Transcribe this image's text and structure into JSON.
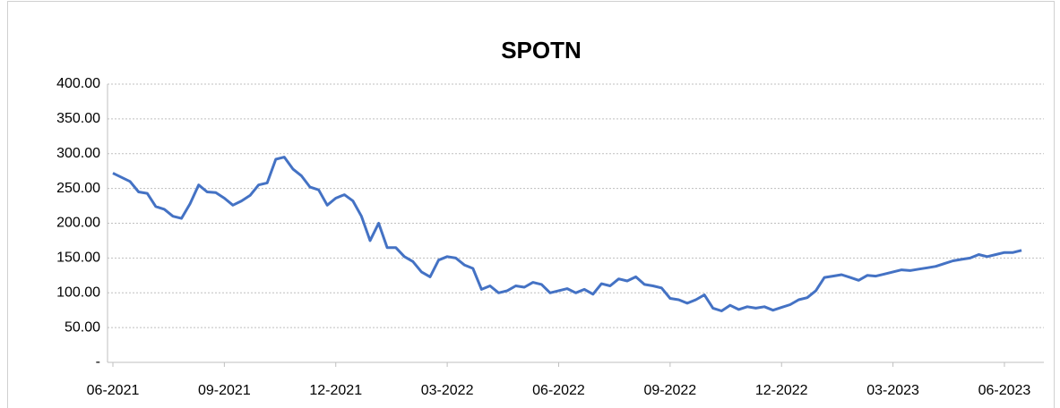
{
  "chart_data": {
    "type": "line",
    "title": "SPOTN",
    "categories": [
      "06-2021",
      null,
      null,
      null,
      null,
      null,
      null,
      null,
      null,
      null,
      null,
      null,
      null,
      "09-2021",
      null,
      null,
      null,
      null,
      null,
      null,
      null,
      null,
      null,
      null,
      null,
      null,
      "12-2021",
      null,
      null,
      null,
      null,
      null,
      null,
      null,
      null,
      null,
      null,
      null,
      null,
      "03-2022",
      null,
      null,
      null,
      null,
      null,
      null,
      null,
      null,
      null,
      null,
      null,
      null,
      "06-2022",
      null,
      null,
      null,
      null,
      null,
      null,
      null,
      null,
      null,
      null,
      null,
      null,
      "09-2022",
      null,
      null,
      null,
      null,
      null,
      null,
      null,
      null,
      null,
      null,
      null,
      null,
      "12-2022",
      null,
      null,
      null,
      null,
      null,
      null,
      null,
      null,
      null,
      null,
      null,
      null,
      "03-2023",
      null,
      null,
      null,
      null,
      null,
      null,
      null,
      null,
      null,
      null,
      null,
      null,
      "06-2023",
      null,
      null
    ],
    "series": [
      {
        "color": "#4472c4",
        "values": [
          272,
          266,
          260,
          245,
          243,
          224,
          220,
          210,
          207,
          228,
          255,
          245,
          244,
          236,
          226,
          232,
          240,
          255,
          258,
          292,
          295,
          278,
          268,
          252,
          248,
          226,
          236,
          241,
          232,
          210,
          175,
          200,
          165,
          165,
          152,
          145,
          130,
          123,
          147,
          152,
          150,
          140,
          135,
          105,
          110,
          100,
          103,
          110,
          108,
          115,
          112,
          100,
          103,
          106,
          100,
          105,
          98,
          113,
          110,
          120,
          117,
          123,
          112,
          110,
          107,
          92,
          90,
          85,
          90,
          97,
          78,
          74,
          82,
          76,
          80,
          78,
          80,
          75,
          79,
          83,
          90,
          93,
          103,
          122,
          124,
          126,
          122,
          118,
          125,
          124,
          127,
          130,
          133,
          132,
          134,
          136,
          138,
          142,
          146,
          148,
          150,
          155,
          152,
          155,
          158,
          158,
          161
        ]
      }
    ],
    "ylim": [
      0,
      400
    ],
    "yticks": [
      {
        "value": 0,
        "label": "-"
      },
      {
        "value": 50,
        "label": "50.00"
      },
      {
        "value": 100,
        "label": "100.00"
      },
      {
        "value": 150,
        "label": "150.00"
      },
      {
        "value": 200,
        "label": "200.00"
      },
      {
        "value": 250,
        "label": "250.00"
      },
      {
        "value": 300,
        "label": "300.00"
      },
      {
        "value": 350,
        "label": "350.00"
      },
      {
        "value": 400,
        "label": "400.00"
      }
    ],
    "grid": true
  }
}
